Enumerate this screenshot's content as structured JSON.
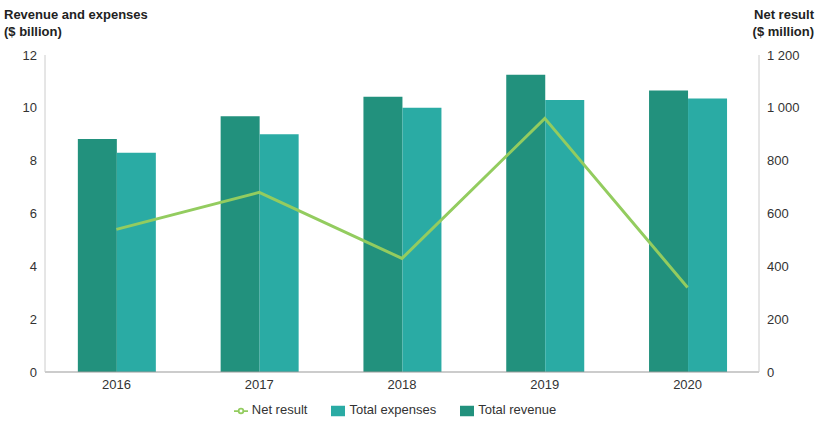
{
  "chart_data": {
    "type": "bar",
    "y_label": [
      "Revenue and expenses",
      "($ billion)"
    ],
    "y2_label": [
      "Net result",
      "($ million)"
    ],
    "categories": [
      "2016",
      "2017",
      "2018",
      "2019",
      "2020"
    ],
    "series": [
      {
        "name": "Total revenue",
        "type": "bar",
        "color": "#22917d",
        "values": [
          8.82,
          9.68,
          10.42,
          11.25,
          10.66
        ]
      },
      {
        "name": "Total expenses",
        "type": "bar",
        "color": "#2aaba4",
        "values": [
          8.3,
          9.0,
          10.0,
          10.3,
          10.35
        ]
      },
      {
        "name": "Net result",
        "type": "line",
        "axis": "y2",
        "color": "#93cc5f",
        "values": [
          540,
          680,
          430,
          960,
          320
        ]
      }
    ],
    "ylim": [
      0,
      12
    ],
    "yticks": [
      0,
      2,
      4,
      6,
      8,
      10,
      12
    ],
    "y2lim": [
      0,
      1200
    ],
    "y2ticks": [
      0,
      200,
      400,
      600,
      800,
      {
        "value": 1000,
        "label": "1 000"
      },
      {
        "value": 1200,
        "label": "1 200"
      }
    ],
    "grid": false,
    "legend": "bottom"
  }
}
